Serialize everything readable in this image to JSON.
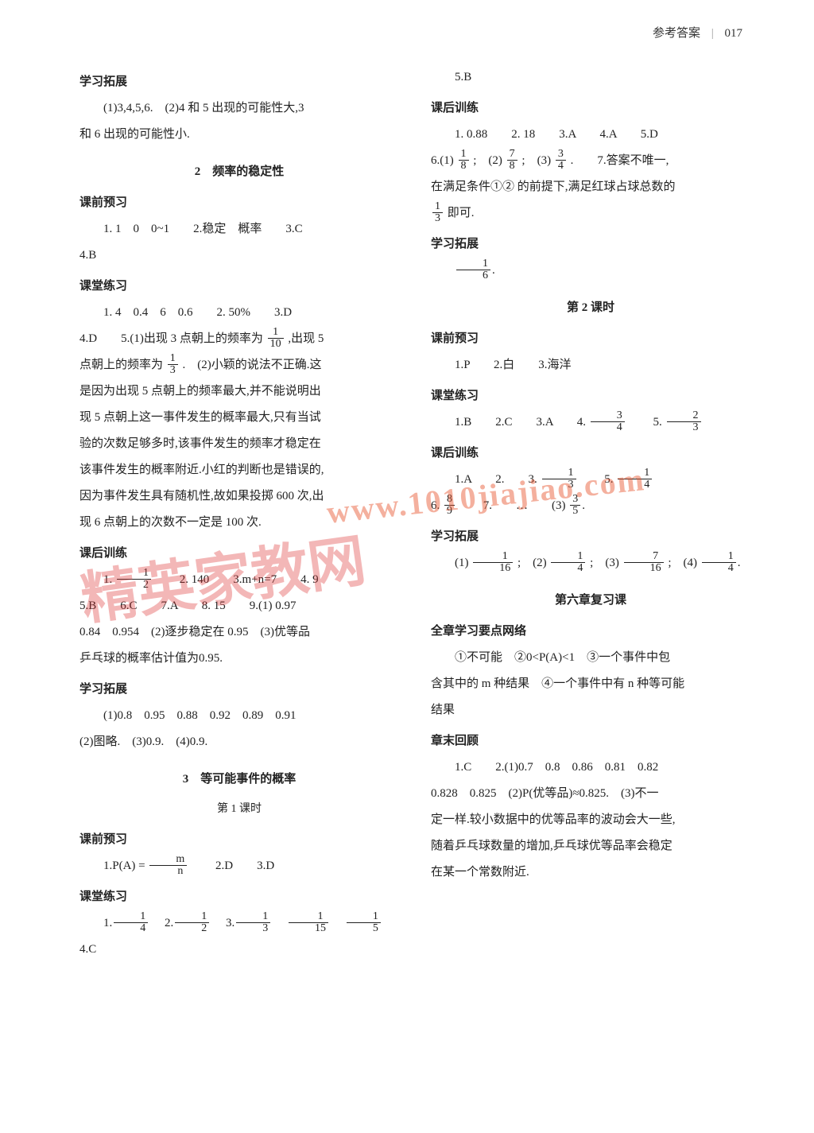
{
  "header": {
    "title": "参考答案",
    "page": "017"
  },
  "left": {
    "s1_title": "学习拓展",
    "s1_l1": "(1)3,4,5,6.　(2)4 和 5 出现的可能性大,3",
    "s1_l2": "和 6 出现的可能性小.",
    "ch2_title": "2　频率的稳定性",
    "s2_title": "课前预习",
    "s2_l1": "1. 1　0　0~1　　2.稳定　概率　　3.C",
    "s2_l2": "4.B",
    "s3_title": "课堂练习",
    "s3_l1": "1. 4　0.4　6　0.6　　2. 50%　　3.D",
    "s3_l2a": "4.D　　5.(1)出现 3 点朝上的频率为",
    "s3_l2b": ",出现 5",
    "s3_l3a": "点朝上的频率为",
    "s3_l3b": ".　(2)小颖的说法不正确.这",
    "s3_l4": "是因为出现 5 点朝上的频率最大,并不能说明出",
    "s3_l5": "现 5 点朝上这一事件发生的概率最大,只有当试",
    "s3_l6": "验的次数足够多时,该事件发生的频率才稳定在",
    "s3_l7": "该事件发生的概率附近.小红的判断也是错误的,",
    "s3_l8": "因为事件发生具有随机性,故如果投掷 600 次,出",
    "s3_l9": "现 6 点朝上的次数不一定是 100 次.",
    "s4_title": "课后训练",
    "s4_l1a": "1.",
    "s4_l1b": "　　2. 140　　3.m+n=7　　4. 9",
    "s4_l2": "5.B　　6.C　　7.A　　8. 15　　9.(1) 0.97",
    "s4_l3": "0.84　0.954　(2)逐步稳定在 0.95　(3)优等品",
    "s4_l4": "乒乓球的概率估计值为0.95.",
    "s5_title": "学习拓展",
    "s5_l1": "(1)0.8　0.95　0.88　0.92　0.89　0.91",
    "s5_l2": "(2)图略.　(3)0.9.　(4)0.9.",
    "ch3_title": "3　等可能事件的概率",
    "ch3_sub": "第 1 课时",
    "s6_title": "课前预习",
    "s6_l1a": "1.P(A) = ",
    "s6_l1b": "　　2.D　　3.D",
    "s7_title": "课堂练习",
    "s7_l1": "　　4.C",
    "fracs": {
      "f1_10": {
        "n": "1",
        "d": "10"
      },
      "f1_3": {
        "n": "1",
        "d": "3"
      },
      "f1_2": {
        "n": "1",
        "d": "2"
      },
      "fm_n": {
        "n": "m",
        "d": "n"
      },
      "f1_4": {
        "n": "1",
        "d": "4"
      },
      "f1_15": {
        "n": "1",
        "d": "15"
      },
      "f1_5": {
        "n": "1",
        "d": "5"
      }
    }
  },
  "right": {
    "r0": "5.B",
    "s1_title": "课后训练",
    "s1_l1": "1. 0.88　　2. 18　　3.A　　4.A　　5.D",
    "s1_l2a": "6.(1)",
    "s1_l2b": ";　(2)",
    "s1_l2c": ";　(3)",
    "s1_l2d": ".　　7.答案不唯一,",
    "s1_l3": "在满足条件①② 的前提下,满足红球占球总数的",
    "s1_l4": "即可.",
    "s2_title": "学习拓展",
    "ch2_sub": "第 2 课时",
    "s3_title": "课前预习",
    "s3_l1": "1.P　　2.白　　3.海洋",
    "s4_title": "课堂练习",
    "s4_l1a": "1.B　　2.C　　3.A　　4.",
    "s4_l1b": "　　5.",
    "s5_title": "课后训练",
    "s5_l1a": "1.A　　2.　　3.",
    "s5_l1b": "　　5.",
    "s5_l2a": "6.",
    "s5_l2b": "　　7.　　…　　(3)",
    "s6_title": "学习拓展",
    "s6_l1a": "(1)",
    "s6_l1b": ";　(2)",
    "s6_l1c": ";　(3)",
    "s6_l1d": ";　(4)",
    "ch6_title": "第六章复习课",
    "s7_title": "全章学习要点网络",
    "s7_l1": "①不可能　②0<P(A)<1　③一个事件中包",
    "s7_l2": "含其中的 m 种结果　④一个事件中有 n 种等可能",
    "s7_l3": "结果",
    "s8_title": "章末回顾",
    "s8_l1": "1.C　　2.(1)0.7　0.8　0.86　0.81　0.82",
    "s8_l2": "0.828　0.825　(2)P(优等品)≈0.825.　(3)不一",
    "s8_l3": "定一样.较小数据中的优等品率的波动会大一些,",
    "s8_l4": "随着乒乓球数量的增加,乒乓球优等品率会稳定",
    "s8_l5": "在某一个常数附近.",
    "fracs": {
      "f1_8": {
        "n": "1",
        "d": "8"
      },
      "f7_8": {
        "n": "7",
        "d": "8"
      },
      "f3_4": {
        "n": "3",
        "d": "4"
      },
      "f1_3": {
        "n": "1",
        "d": "3"
      },
      "f1_6": {
        "n": "1",
        "d": "6"
      },
      "f2_3": {
        "n": "2",
        "d": "3"
      },
      "f1_4": {
        "n": "1",
        "d": "4"
      },
      "f8_9": {
        "n": "8",
        "d": "9"
      },
      "f3_5": {
        "n": "3",
        "d": "5"
      },
      "f1_16": {
        "n": "1",
        "d": "16"
      },
      "f7_16": {
        "n": "7",
        "d": "16"
      }
    }
  },
  "watermark": {
    "text1": "精英家教网",
    "text2": "www.1010jiajiao.com"
  }
}
